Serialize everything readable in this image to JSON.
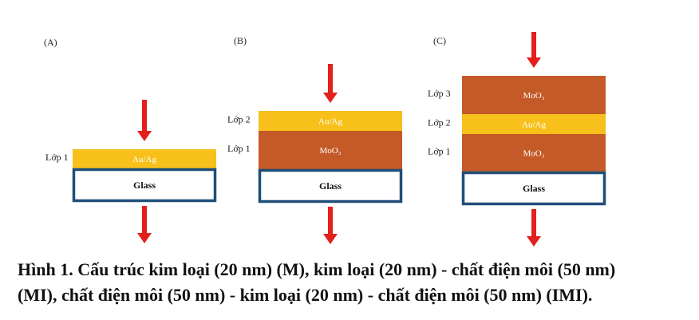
{
  "panels": [
    {
      "label": "(A)",
      "layers": [
        {
          "side_label": "Lớp 1",
          "text": "Au/Ag"
        }
      ],
      "glass": "Glass"
    },
    {
      "label": "(B)",
      "layers": [
        {
          "side_label": "Lớp 1",
          "text": "MoO₃"
        },
        {
          "side_label": "Lớp 2",
          "text": "Au/Ag"
        }
      ],
      "glass": "Glass"
    },
    {
      "label": "(C)",
      "layers": [
        {
          "side_label": "Lớp 1",
          "text": "MoO₃"
        },
        {
          "side_label": "Lớp 2",
          "text": "Au/Ag"
        },
        {
          "side_label": "Lớp 3",
          "text": "MoO₃"
        }
      ],
      "glass": "Glass"
    }
  ],
  "caption": {
    "lines": [
      "Hình 1. Cấu trúc kim loại (20 nm) (M), kim loại (20 nm) - chất điện môi (50 nm)",
      "(MI), chất điện môi (50 nm) - kim loại (20 nm) - chất điện môi (50 nm) (IMI)."
    ]
  }
}
